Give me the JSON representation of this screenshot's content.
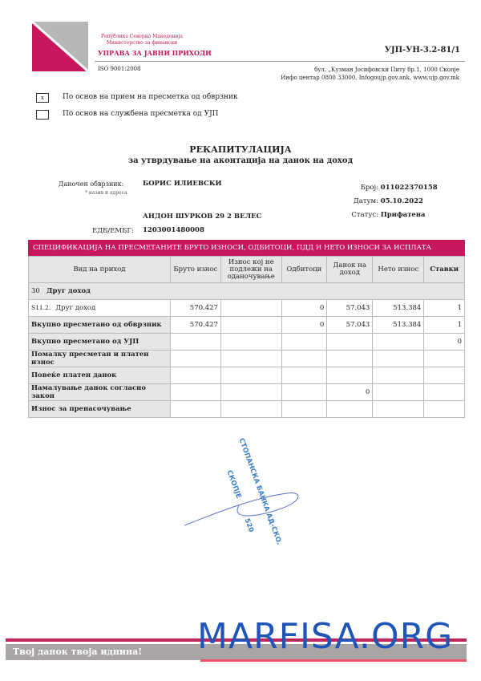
{
  "header": {
    "republic": "Република Северна Македонија",
    "ministry": "Министерство за финансии",
    "agency": "УПРАВА ЗА ЈАВНИ ПРИХОДИ",
    "iso": "ISO 9001:2008",
    "form_code": "УЈП-УН-3.2-81/1",
    "address": "бул. „Кузман Јосифовски Питу бр.1, 1000 Скопје",
    "info": "Инфо центар 0800 33000, Infogoujp.gov.ank, www.ujp.gov.mk",
    "colors": {
      "brand": "#c8175d",
      "gray": "#b7b7b7"
    }
  },
  "checkboxes": [
    {
      "mark": "x",
      "label": "По основ на прием на пресметка од обврзник",
      "checked": true
    },
    {
      "mark": "",
      "label": "По основ на службена пресметка од УЈП",
      "checked": false
    }
  ],
  "title": "РЕКАПИТУЛАЦИЈА",
  "subtitle": "за утврдување на аконтација на данок на доход",
  "taxpayer": {
    "label": "Даночен обврзник:",
    "note": "* назив и адреса",
    "name": "БОРИС ИЛИЕВСКИ",
    "address": "АНДОН ШУРКОВ 29 2 ВЕЛЕС",
    "id_label": "ЕДБ/ЕМБГ:",
    "id": "1203001480008"
  },
  "meta": {
    "number_label": "Број:",
    "number": "011022370158",
    "date_label": "Датум:",
    "date": "05.10.2022",
    "status_label": "Статус:",
    "status": "Прифатена"
  },
  "table": {
    "title": "СПЕЦИФИКАЦИЈА НА ПРЕСМЕТАНИТЕ БРУТО ИЗНОСИ, ОДБИТОЦИ, ПДД И НЕТО ИЗНОСИ ЗА ИСПЛАТА",
    "columns": [
      "Вид на приход",
      "Бруто износ",
      "Износ кој не подлежи на оданочување",
      "Одбитоци",
      "Данок на доход",
      "Нето износ",
      "Ставки"
    ],
    "group": {
      "code": "30",
      "name": "Друг доход"
    },
    "item": {
      "code": "S11.2.",
      "name": "Друг доход",
      "values": [
        "570.427",
        "",
        "0",
        "57.043",
        "513.384",
        "1"
      ]
    },
    "rows": [
      {
        "label": "Вкупно пресметано од обврзник",
        "values": [
          "570.427",
          "",
          "0",
          "57.043",
          "513.384",
          "1"
        ]
      },
      {
        "label": "Вкупно пресметано од УЈП",
        "values": [
          "",
          "",
          "",
          "",
          "",
          "0"
        ]
      },
      {
        "label": "Помалку пресметан и платен износ",
        "values": [
          "",
          "",
          "",
          "",
          "",
          ""
        ]
      },
      {
        "label": "Повеќе платен данок",
        "values": [
          "",
          "",
          "",
          "",
          "",
          ""
        ]
      },
      {
        "label": "Намалување данок согласно закон",
        "values": [
          "",
          "",
          "",
          "0",
          "",
          ""
        ]
      },
      {
        "label": "Износ за пренасочување",
        "values": [
          "",
          "",
          "",
          "",
          "",
          ""
        ]
      }
    ]
  },
  "stamp": {
    "line1": "СТОПАНСКА БАНКА АД-СКО.",
    "line2": "СКОПЈЕ",
    "line3": "520"
  },
  "footer": {
    "watermark": "MARFISA.ORG",
    "slogan": "Твој данок твоја иднина!"
  }
}
